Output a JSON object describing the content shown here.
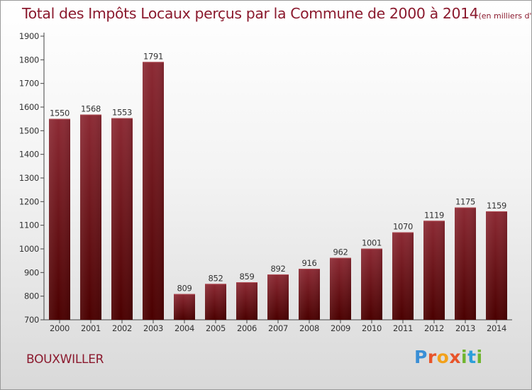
{
  "header": {
    "title": "Total des Impôts Locaux perçus par la Commune de 2000 à 2014",
    "subtitle": "(en milliers d'€)"
  },
  "footer": {
    "commune": "BOUXWILLER",
    "logo_letters": [
      "P",
      "r",
      "o",
      "x",
      "i",
      "t",
      "i"
    ]
  },
  "colors": {
    "title": "#8b1a2e",
    "bar_top": "#8c2a34",
    "bar_bottom": "#4a0000"
  },
  "chart_data": {
    "type": "bar",
    "title": "Total des Impôts Locaux perçus par la Commune de 2000 à 2014",
    "xlabel": "",
    "ylabel": "",
    "categories": [
      "2000",
      "2001",
      "2002",
      "2003",
      "2004",
      "2005",
      "2006",
      "2007",
      "2008",
      "2009",
      "2010",
      "2011",
      "2012",
      "2013",
      "2014"
    ],
    "values": [
      1550,
      1568,
      1553,
      1791,
      809,
      852,
      859,
      892,
      916,
      962,
      1001,
      1070,
      1119,
      1175,
      1159
    ],
    "ylim": [
      700,
      1900
    ],
    "yticks": [
      700,
      800,
      900,
      1000,
      1100,
      1200,
      1300,
      1400,
      1500,
      1600,
      1700,
      1800,
      1900
    ],
    "grid": false,
    "legend": "none"
  }
}
